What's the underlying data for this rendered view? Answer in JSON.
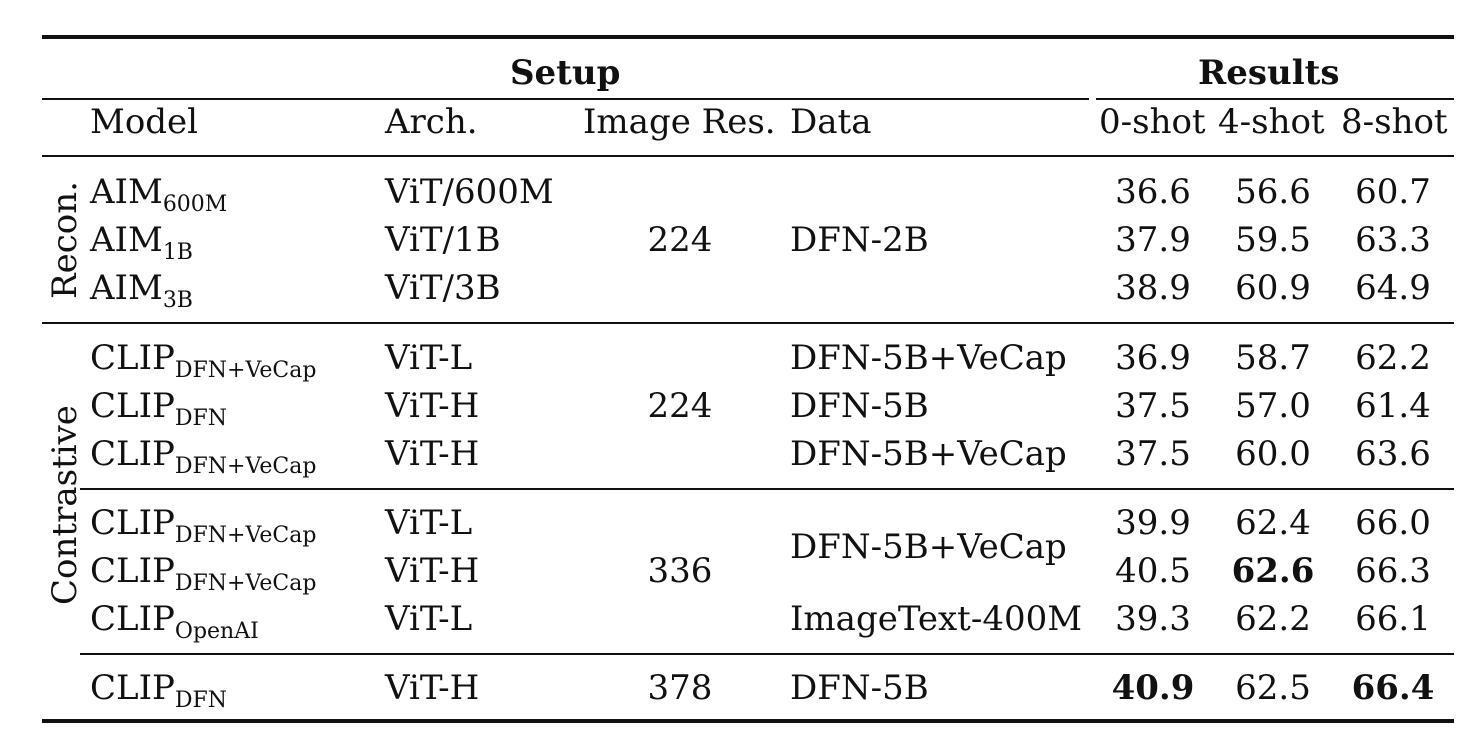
{
  "header": {
    "setup": "Setup",
    "results": "Results",
    "columns": {
      "model": "Model",
      "arch": "Arch.",
      "image_res": "Image Res.",
      "data": "Data",
      "shot0": "0-shot",
      "shot4": "4-shot",
      "shot8": "8-shot"
    }
  },
  "groups": {
    "recon": "Recon.",
    "contrastive": "Contrastive"
  },
  "recon": {
    "rows": [
      {
        "model": "AIM",
        "sub": "600M",
        "arch": "ViT/600M",
        "s0": "36.6",
        "s4": "56.6",
        "s8": "60.7"
      },
      {
        "model": "AIM",
        "sub": "1B",
        "arch": "ViT/1B",
        "s0": "37.9",
        "s4": "59.5",
        "s8": "63.3"
      },
      {
        "model": "AIM",
        "sub": "3B",
        "arch": "ViT/3B",
        "s0": "38.9",
        "s4": "60.9",
        "s8": "64.9"
      }
    ],
    "res": "224",
    "data": "DFN-2B"
  },
  "contrastive_a": {
    "rows": [
      {
        "model": "CLIP",
        "sub": "DFN+VeCap",
        "arch": "ViT-L",
        "data": "DFN-5B+VeCap",
        "s0": "36.9",
        "s4": "58.7",
        "s8": "62.2"
      },
      {
        "model": "CLIP",
        "sub": "DFN",
        "arch": "ViT-H",
        "data": "DFN-5B",
        "s0": "37.5",
        "s4": "57.0",
        "s8": "61.4"
      },
      {
        "model": "CLIP",
        "sub": "DFN+VeCap",
        "arch": "ViT-H",
        "data": "DFN-5B+VeCap",
        "s0": "37.5",
        "s4": "60.0",
        "s8": "63.6"
      }
    ],
    "res": "224"
  },
  "contrastive_b": {
    "rows": [
      {
        "model": "CLIP",
        "sub": "DFN+VeCap",
        "arch": "ViT-L",
        "s0": "39.9",
        "s4": "62.4",
        "s8": "66.0"
      },
      {
        "model": "CLIP",
        "sub": "DFN+VeCap",
        "arch": "ViT-H",
        "s0": "40.5",
        "s4": "62.6",
        "s8": "66.3"
      },
      {
        "model": "CLIP",
        "sub": "OpenAI",
        "arch": "ViT-L",
        "s0": "39.3",
        "s4": "62.2",
        "s8": "66.1"
      }
    ],
    "res": "336",
    "data_shared": "DFN-5B+VeCap",
    "data_last": "ImageText-400M"
  },
  "contrastive_c": {
    "row": {
      "model": "CLIP",
      "sub": "DFN",
      "arch": "ViT-H",
      "res": "378",
      "data": "DFN-5B",
      "s0": "40.9",
      "s4": "62.5",
      "s8": "66.4"
    }
  }
}
